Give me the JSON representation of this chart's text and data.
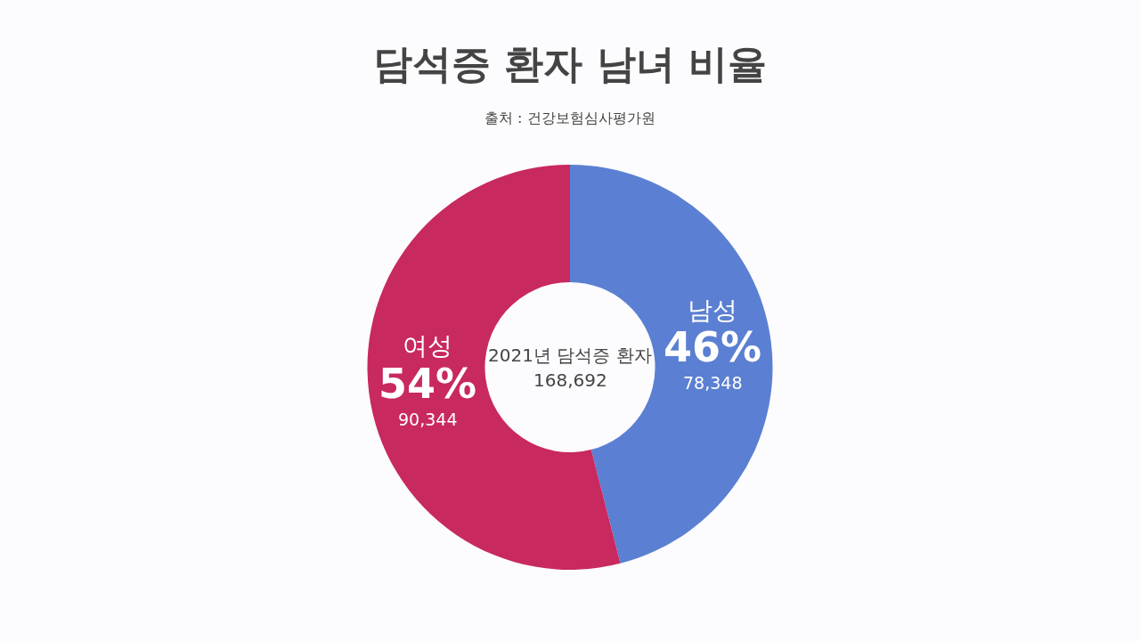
{
  "chart_data": {
    "type": "donut",
    "title": "담석증 환자 남녀 비율",
    "subtitle": "출처 : 건강보험심사평가원",
    "categories": [
      "남성",
      "여성"
    ],
    "values": [
      46,
      54
    ],
    "colors": [
      "#5b7fd2",
      "#c8295f"
    ],
    "value_labels": [
      "46%",
      "54%"
    ],
    "annotations": [
      "2021년 담석증 환자",
      "168,692",
      {
        "text": "78,348",
        "x": "남성"
      },
      {
        "text": "90,344",
        "x": "여성"
      }
    ],
    "legend": false
  }
}
